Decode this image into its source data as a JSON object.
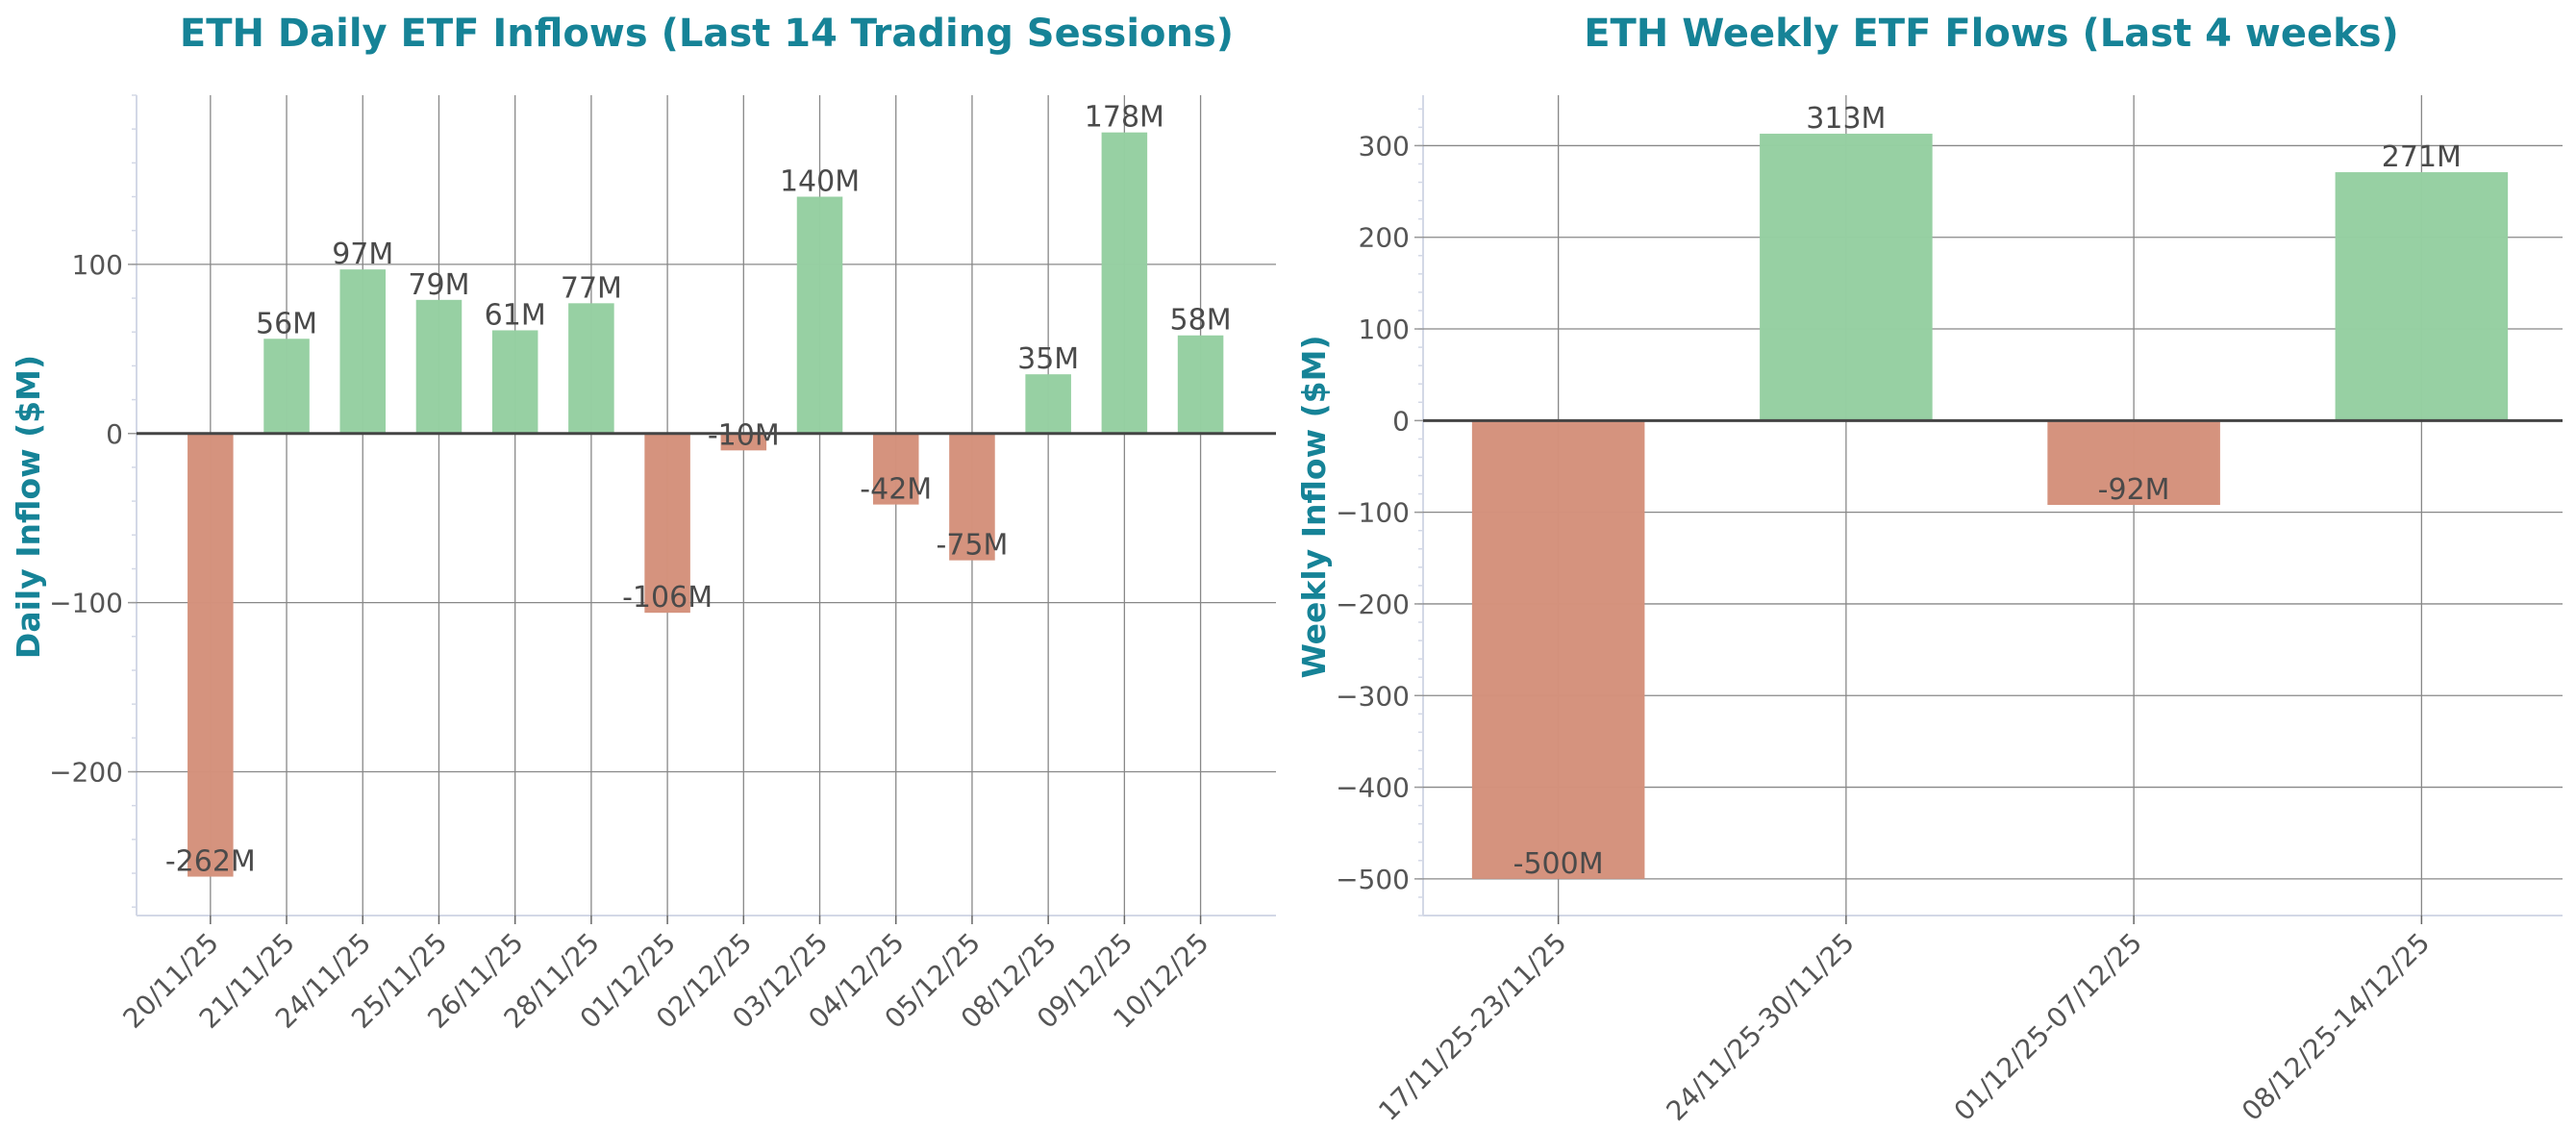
{
  "colors": {
    "positive": "#95cfa1",
    "negative": "#d4917b",
    "title": "#168397",
    "zero_line": "#444444",
    "grid": "#888888"
  },
  "chart_data": [
    {
      "type": "bar",
      "title": "ETH Daily ETF Inflows (Last 14 Trading Sessions)",
      "xlabel": "",
      "ylabel": "Daily Inflow ($M)",
      "categories": [
        "20/11/25",
        "21/11/25",
        "24/11/25",
        "25/11/25",
        "26/11/25",
        "28/11/25",
        "01/12/25",
        "02/12/25",
        "03/12/25",
        "04/12/25",
        "05/12/25",
        "08/12/25",
        "09/12/25",
        "10/12/25"
      ],
      "values": [
        -262,
        56,
        97,
        79,
        61,
        77,
        -106,
        -10,
        140,
        -42,
        -75,
        35,
        178,
        58
      ],
      "data_labels": [
        "-262M",
        "56M",
        "97M",
        "79M",
        "61M",
        "77M",
        "-106M",
        "-10M",
        "140M",
        "-42M",
        "-75M",
        "35M",
        "178M",
        "58M"
      ],
      "ylim": [
        -285,
        200
      ],
      "yticks": [
        -200,
        -100,
        0,
        100
      ],
      "ytick_labels": [
        "−200",
        "−100",
        "0",
        "100"
      ],
      "grid": true
    },
    {
      "type": "bar",
      "title": "ETH Weekly ETF Flows (Last 4 weeks)",
      "xlabel": "",
      "ylabel": "Weekly Inflow ($M)",
      "categories": [
        "17/11/25-23/11/25",
        "24/11/25-30/11/25",
        "01/12/25-07/12/25",
        "08/12/25-14/12/25"
      ],
      "values": [
        -500,
        313,
        -92,
        271
      ],
      "data_labels": [
        "-500M",
        "313M",
        "-92M",
        "271M"
      ],
      "ylim": [
        -540,
        355
      ],
      "yticks": [
        -500,
        -400,
        -300,
        -200,
        -100,
        0,
        100,
        200,
        300
      ],
      "ytick_labels": [
        "−500",
        "−400",
        "−300",
        "−200",
        "−100",
        "0",
        "100",
        "200",
        "300"
      ],
      "grid": true
    }
  ]
}
